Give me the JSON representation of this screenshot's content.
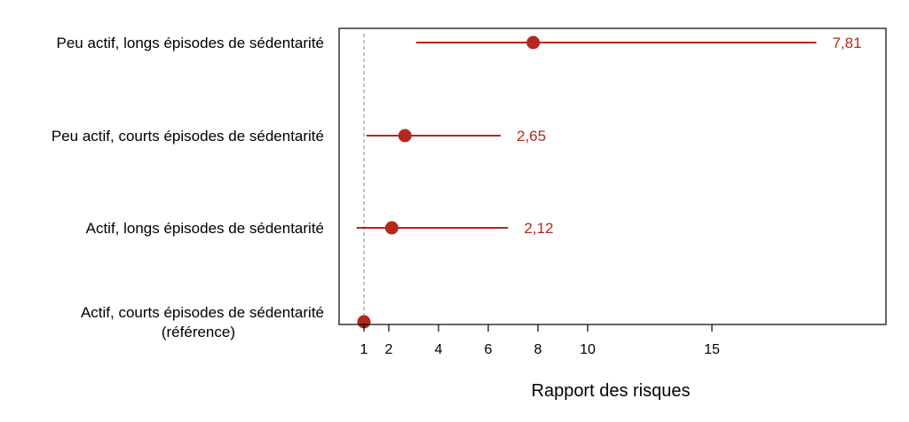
{
  "colors": {
    "accent": "#b5281c",
    "reference_line": "#9a9a9a",
    "frame": "#000000"
  },
  "chart_data": {
    "type": "scatter",
    "subtype": "forest-plot",
    "title": "",
    "xlabel": "Rapport des risques",
    "ylabel": "",
    "xlim": [
      0,
      22
    ],
    "xticks": [
      1,
      2,
      4,
      6,
      8,
      10,
      15
    ],
    "xtick_labels": [
      "1",
      "2",
      "4",
      "6",
      "8",
      "10",
      "15"
    ],
    "reference_value": 1,
    "grid": false,
    "legend": "none",
    "rows": [
      {
        "label": [
          "Peu actif, longs épisodes de sédentarité"
        ],
        "estimate": 7.81,
        "ci_low": 3.1,
        "ci_high": 19.2,
        "value_label": "7,81"
      },
      {
        "label": [
          "Peu actif, courts épisodes de sédentarité"
        ],
        "estimate": 2.65,
        "ci_low": 1.1,
        "ci_high": 6.5,
        "value_label": "2,65"
      },
      {
        "label": [
          "Actif, longs épisodes de sédentarité"
        ],
        "estimate": 2.12,
        "ci_low": 0.7,
        "ci_high": 6.8,
        "value_label": "2,12"
      },
      {
        "label": [
          "Actif, courts épisodes de sédentarité",
          "(référence)"
        ],
        "estimate": 1,
        "ci_low": null,
        "ci_high": null,
        "value_label": ""
      }
    ]
  }
}
